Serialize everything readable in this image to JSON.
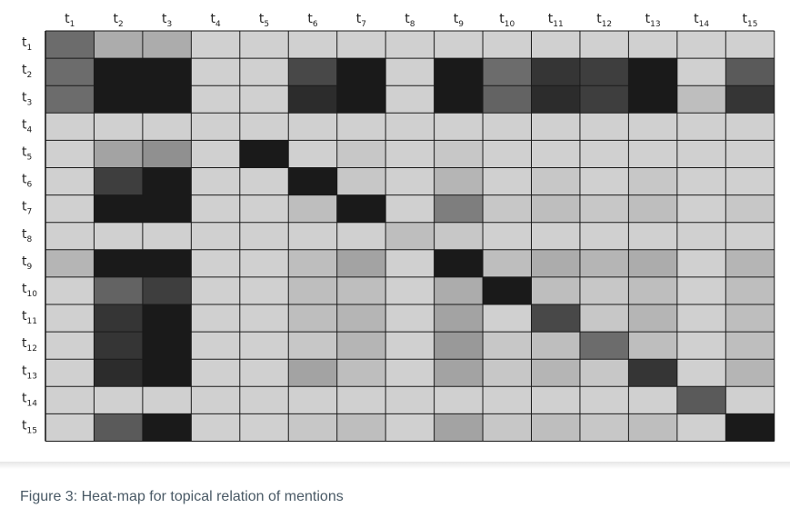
{
  "caption": "Figure 3: Heat-map for topical relation of mentions",
  "chart_data": {
    "type": "heatmap",
    "title": "",
    "xlabel": "",
    "ylabel": "",
    "x_tick_base": "t",
    "y_tick_base": "t",
    "x_tick_subscripts": [
      "1",
      "2",
      "3",
      "4",
      "5",
      "6",
      "7",
      "8",
      "9",
      "10",
      "11",
      "12",
      "13",
      "14",
      "15"
    ],
    "y_tick_subscripts": [
      "1",
      "2",
      "3",
      "4",
      "5",
      "6",
      "7",
      "8",
      "9",
      "10",
      "11",
      "12",
      "13",
      "14",
      "15"
    ],
    "value_note": "cell values are intensity 0 (light) to 1 (dark), estimated from shading",
    "colors": {
      "low": "#d0d0d0",
      "high": "#1a1a1a",
      "grid": "#1a1a1a"
    },
    "values": [
      [
        0.55,
        0.2,
        0.2,
        0.0,
        0.0,
        0.0,
        0.0,
        0.0,
        0.0,
        0.0,
        0.0,
        0.0,
        0.0,
        0.0,
        0.0
      ],
      [
        0.55,
        1.0,
        1.0,
        0.0,
        0.0,
        0.75,
        1.0,
        0.0,
        1.0,
        0.55,
        0.85,
        0.8,
        1.0,
        0.0,
        0.65
      ],
      [
        0.55,
        1.0,
        1.0,
        0.0,
        0.0,
        0.9,
        1.0,
        0.0,
        1.0,
        0.6,
        0.9,
        0.8,
        1.0,
        0.1,
        0.85
      ],
      [
        0.0,
        0.0,
        0.0,
        0.0,
        0.0,
        0.0,
        0.0,
        0.0,
        0.0,
        0.0,
        0.0,
        0.0,
        0.0,
        0.0,
        0.0
      ],
      [
        0.0,
        0.25,
        0.35,
        0.0,
        1.0,
        0.0,
        0.05,
        0.0,
        0.05,
        0.0,
        0.0,
        0.0,
        0.0,
        0.0,
        0.0
      ],
      [
        0.0,
        0.8,
        1.0,
        0.0,
        0.0,
        1.0,
        0.05,
        0.0,
        0.15,
        0.0,
        0.05,
        0.0,
        0.05,
        0.0,
        0.0
      ],
      [
        0.0,
        1.0,
        1.0,
        0.0,
        0.0,
        0.1,
        1.0,
        0.0,
        0.45,
        0.05,
        0.1,
        0.05,
        0.1,
        0.0,
        0.05
      ],
      [
        0.0,
        0.0,
        0.0,
        0.0,
        0.0,
        0.0,
        0.0,
        0.1,
        0.05,
        0.0,
        0.0,
        0.0,
        0.0,
        0.0,
        0.0
      ],
      [
        0.15,
        1.0,
        1.0,
        0.0,
        0.0,
        0.1,
        0.25,
        0.0,
        1.0,
        0.1,
        0.2,
        0.15,
        0.2,
        0.0,
        0.15
      ],
      [
        0.0,
        0.6,
        0.8,
        0.0,
        0.0,
        0.1,
        0.1,
        0.0,
        0.2,
        1.0,
        0.1,
        0.05,
        0.1,
        0.0,
        0.1
      ],
      [
        0.0,
        0.85,
        1.0,
        0.0,
        0.0,
        0.1,
        0.15,
        0.0,
        0.25,
        0.0,
        0.75,
        0.05,
        0.15,
        0.0,
        0.1
      ],
      [
        0.0,
        0.85,
        1.0,
        0.0,
        0.0,
        0.05,
        0.15,
        0.0,
        0.3,
        0.05,
        0.1,
        0.55,
        0.1,
        0.0,
        0.1
      ],
      [
        0.0,
        0.9,
        1.0,
        0.0,
        0.0,
        0.25,
        0.1,
        0.0,
        0.25,
        0.05,
        0.15,
        0.05,
        0.85,
        0.0,
        0.15
      ],
      [
        0.0,
        0.0,
        0.0,
        0.0,
        0.0,
        0.0,
        0.0,
        0.0,
        0.0,
        0.0,
        0.0,
        0.0,
        0.0,
        0.65,
        0.0
      ],
      [
        0.0,
        0.65,
        1.0,
        0.0,
        0.0,
        0.05,
        0.1,
        0.0,
        0.25,
        0.05,
        0.1,
        0.05,
        0.1,
        0.0,
        1.0
      ]
    ]
  }
}
